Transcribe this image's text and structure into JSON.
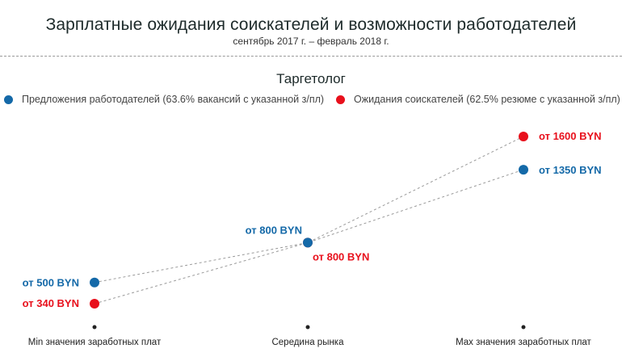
{
  "header": {
    "title": "Зарплатные ожидания соискателей и возможности работодателей",
    "subtitle": "сентябрь 2017 г. – февраль 2018 г."
  },
  "colors": {
    "employers": "#1469a8",
    "seekers": "#e8101c",
    "guide_line": "#9a9a9a",
    "tick_dot": "#222222"
  },
  "chart_data": {
    "type": "line",
    "title": "Таргетолог",
    "categories": [
      "Min значения заработных плат",
      "Середина рынка",
      "Max значения заработных плат"
    ],
    "legend_position": "top",
    "grid": false,
    "series": [
      {
        "name": "Предложения работодателей (63.6% вакансий с указанной з/пл)",
        "color": "#1469a8",
        "values": [
          500,
          800,
          1350
        ],
        "labels": [
          "от 500 BYN",
          "от 800 BYN",
          "от 1350 BYN"
        ]
      },
      {
        "name": "Ожидания соискателей (62.5% резюме с указанной з/пл)",
        "color": "#e8101c",
        "values": [
          340,
          800,
          1600
        ],
        "labels": [
          "от 340 BYN",
          "от 800 BYN",
          "от 1600 BYN"
        ]
      }
    ]
  }
}
